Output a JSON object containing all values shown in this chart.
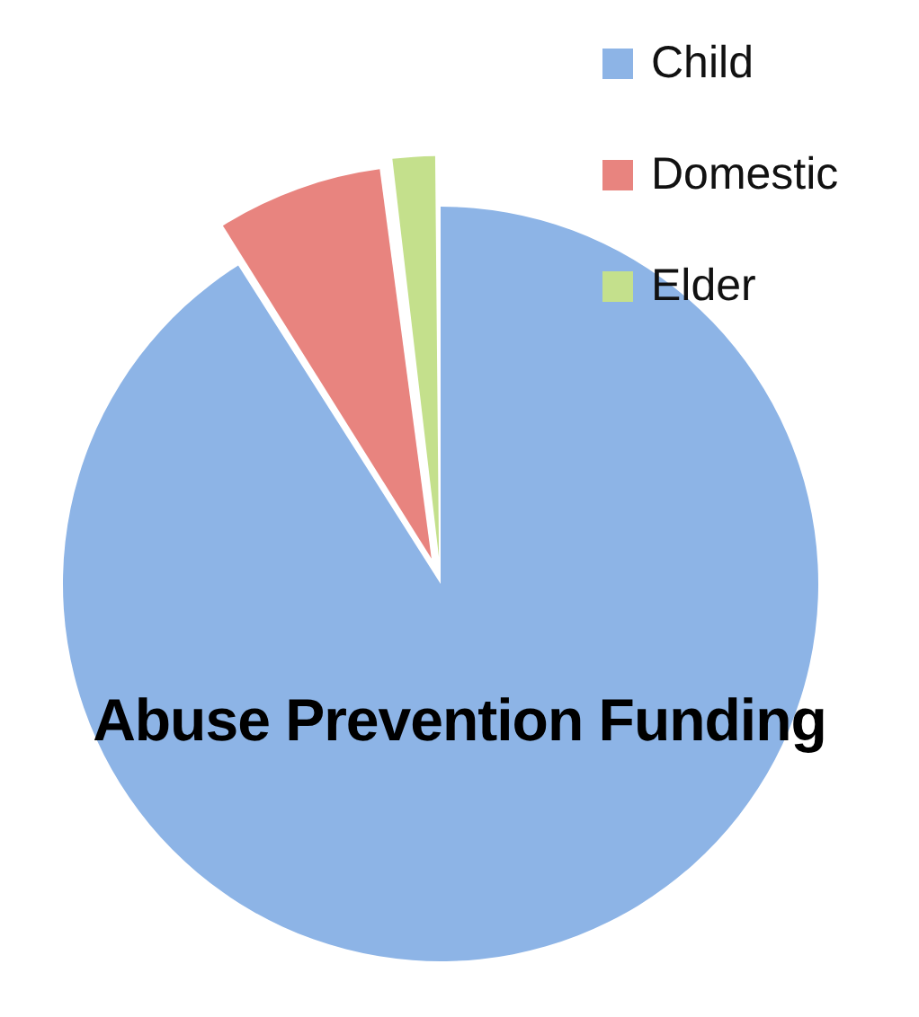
{
  "chart_data": {
    "type": "pie",
    "title": "Abuse Prevention Funding",
    "categories": [
      "Child",
      "Domestic",
      "Elder"
    ],
    "values": [
      91,
      7,
      2
    ],
    "colors": [
      "#8db4e6",
      "#e8847f",
      "#c4e08c"
    ],
    "legend": "top right"
  }
}
